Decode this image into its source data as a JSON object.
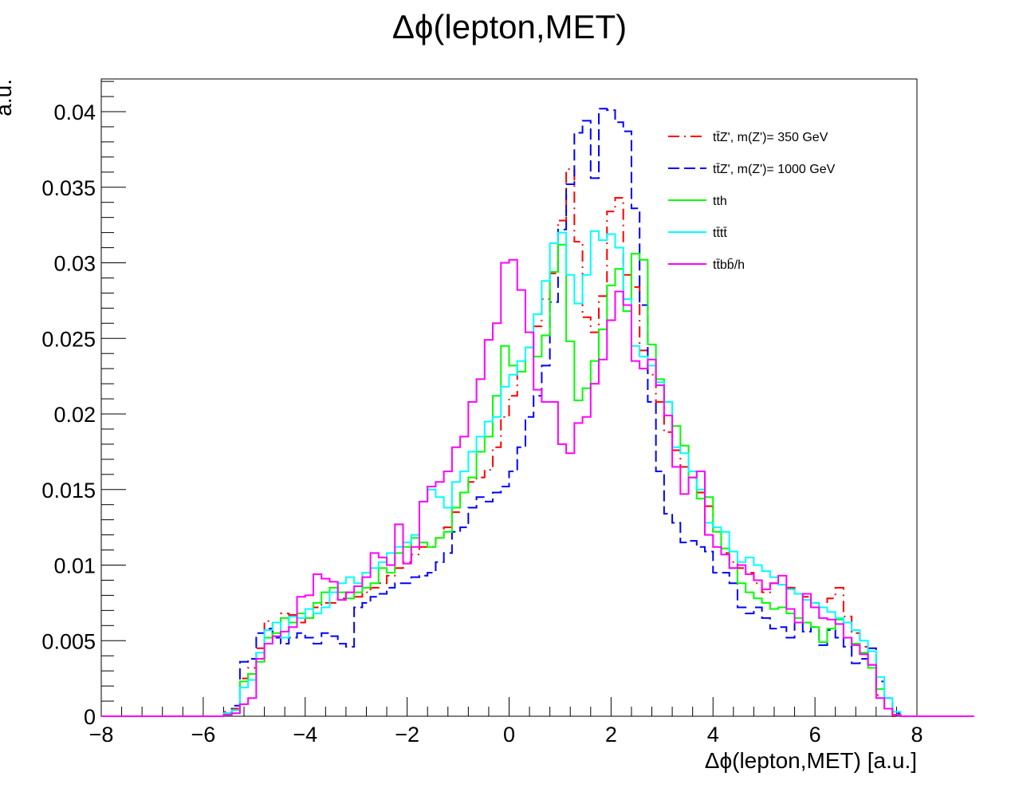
{
  "chart_data": {
    "type": "histogram",
    "title": "Δϕ(lepton,MET)",
    "xlabel": "Δϕ(lepton,MET) [a.u.]",
    "ylabel": "a.u.",
    "xlim": [
      -8,
      8
    ],
    "ylim": [
      0,
      0.042
    ],
    "xticks": [
      -8,
      -6,
      -4,
      -2,
      0,
      2,
      4,
      6,
      8
    ],
    "xtick_labels": [
      "−8",
      "−6",
      "−4",
      "−2",
      "0",
      "2",
      "4",
      "6",
      "8"
    ],
    "yticks": [
      0,
      0.005,
      0.01,
      0.015,
      0.02,
      0.025,
      0.03,
      0.035,
      0.04
    ],
    "ytick_labels": [
      "0",
      "0.005",
      "0.01",
      "0.015",
      "0.02",
      "0.025",
      "0.03",
      "0.035",
      "0.04"
    ],
    "bin_start": -8,
    "bin_width": 0.16,
    "grid": false,
    "legend_position": "top-right",
    "series": [
      {
        "name": "tt̄Z', m(Z')= 350 GeV",
        "color": "#ff0000",
        "dash": "dashdot",
        "values": [
          0,
          0,
          0,
          0,
          0,
          0,
          0,
          0,
          0,
          0,
          0,
          0,
          0,
          0,
          0,
          0.0003,
          0.0005,
          0.0025,
          0.0032,
          0.0045,
          0.0063,
          0.0055,
          0.0068,
          0.0067,
          0.0062,
          0.0065,
          0.0072,
          0.0075,
          0.0075,
          0.0078,
          0.0082,
          0.0079,
          0.0082,
          0.0085,
          0.0088,
          0.0093,
          0.0098,
          0.0102,
          0.0107,
          0.0112,
          0.0112,
          0.0118,
          0.0125,
          0.0135,
          0.0148,
          0.0155,
          0.0158,
          0.0163,
          0.0178,
          0.0198,
          0.0212,
          0.0228,
          0.0244,
          0.0258,
          0.0276,
          0.0293,
          0.0328,
          0.0362,
          0.0314,
          0.0264,
          0.0254,
          0.0278,
          0.0334,
          0.0343,
          0.0292,
          0.0284,
          0.0242,
          0.0226,
          0.0208,
          0.0188,
          0.0176,
          0.0165,
          0.0158,
          0.0148,
          0.0139,
          0.0122,
          0.0108,
          0.0102,
          0.0098,
          0.0095,
          0.0088,
          0.0082,
          0.0088,
          0.0087,
          0.0085,
          0.0081,
          0.0079,
          0.0075,
          0.0072,
          0.0078,
          0.0085,
          0.0066,
          0.0055,
          0.0046,
          0.0034,
          0.0014,
          0.0005,
          0,
          0,
          0,
          0,
          0,
          0,
          0,
          0,
          0,
          0
        ]
      },
      {
        "name": "tt̄Z', m(Z')= 1000 GeV",
        "color": "#0000ff",
        "dash": "longdash",
        "values": [
          0,
          0,
          0,
          0,
          0,
          0,
          0,
          0,
          0,
          0,
          0,
          0,
          0,
          0,
          0,
          0.0002,
          0.0007,
          0.0036,
          0.0038,
          0.0055,
          0.0058,
          0.0052,
          0.0048,
          0.0052,
          0.0055,
          0.0052,
          0.0048,
          0.0055,
          0.0053,
          0.0048,
          0.0046,
          0.0072,
          0.0075,
          0.0079,
          0.0081,
          0.0085,
          0.0088,
          0.0088,
          0.0092,
          0.0093,
          0.0095,
          0.0102,
          0.0108,
          0.0122,
          0.0125,
          0.0138,
          0.0145,
          0.0142,
          0.0148,
          0.0152,
          0.0162,
          0.0178,
          0.0198,
          0.0212,
          0.0232,
          0.0274,
          0.0322,
          0.0352,
          0.0386,
          0.0394,
          0.0356,
          0.0402,
          0.0401,
          0.0393,
          0.0387,
          0.0336,
          0.0272,
          0.0208,
          0.0162,
          0.0134,
          0.0128,
          0.0115,
          0.0116,
          0.0112,
          0.0109,
          0.0095,
          0.0095,
          0.0088,
          0.0072,
          0.0068,
          0.0072,
          0.0065,
          0.0058,
          0.0059,
          0.0052,
          0.0062,
          0.0056,
          0.0059,
          0.0047,
          0.0057,
          0.0052,
          0.0046,
          0.0035,
          0.0038,
          0.0045,
          0.0023,
          0.0012,
          0.0002,
          0,
          0,
          0,
          0,
          0,
          0,
          0,
          0,
          0
        ]
      },
      {
        "name": "tth",
        "color": "#00ff00",
        "dash": "solid",
        "values": [
          0,
          0,
          0,
          0,
          0,
          0,
          0,
          0,
          0,
          0,
          0,
          0,
          0,
          0,
          0,
          0.0001,
          0.0004,
          0.0023,
          0.0028,
          0.0036,
          0.0052,
          0.0055,
          0.0065,
          0.0062,
          0.0068,
          0.0065,
          0.0075,
          0.0082,
          0.0085,
          0.0082,
          0.0078,
          0.0082,
          0.0085,
          0.0088,
          0.0098,
          0.0095,
          0.0108,
          0.0112,
          0.0118,
          0.0115,
          0.0112,
          0.0118,
          0.0122,
          0.0138,
          0.0148,
          0.0158,
          0.0175,
          0.0185,
          0.0212,
          0.0245,
          0.0232,
          0.0228,
          0.0244,
          0.0238,
          0.0252,
          0.0294,
          0.0312,
          0.0248,
          0.0209,
          0.0217,
          0.0235,
          0.0256,
          0.0285,
          0.0296,
          0.0268,
          0.0306,
          0.0302,
          0.0246,
          0.0223,
          0.0208,
          0.0192,
          0.0179,
          0.0158,
          0.0144,
          0.0145,
          0.0122,
          0.0111,
          0.0098,
          0.0088,
          0.0082,
          0.0078,
          0.0075,
          0.0071,
          0.0072,
          0.0068,
          0.0065,
          0.0062,
          0.0059,
          0.0049,
          0.0058,
          0.0064,
          0.0052,
          0.0048,
          0.0042,
          0.0032,
          0.0018,
          0.0005,
          0.0001,
          0,
          0,
          0,
          0,
          0,
          0,
          0,
          0,
          0
        ]
      },
      {
        "name": "tt̄tt̄",
        "color": "#00ffff",
        "dash": "solid",
        "values": [
          0,
          0,
          0,
          0,
          0,
          0,
          0,
          0,
          0,
          0,
          0,
          0,
          0,
          0,
          0,
          0.0002,
          0.0004,
          0.0019,
          0.0024,
          0.0042,
          0.0057,
          0.0062,
          0.0052,
          0.0066,
          0.0065,
          0.0071,
          0.0068,
          0.0072,
          0.0082,
          0.0088,
          0.0092,
          0.0088,
          0.0095,
          0.0098,
          0.0102,
          0.0108,
          0.0112,
          0.0115,
          0.012,
          0.0142,
          0.015,
          0.0145,
          0.0138,
          0.0155,
          0.0162,
          0.0175,
          0.0185,
          0.0195,
          0.0198,
          0.0218,
          0.0226,
          0.0235,
          0.0244,
          0.0266,
          0.0288,
          0.0313,
          0.032,
          0.0292,
          0.0273,
          0.0292,
          0.0321,
          0.0315,
          0.0319,
          0.031,
          0.0276,
          0.0245,
          0.0238,
          0.0232,
          0.0221,
          0.0208,
          0.0178,
          0.0174,
          0.0162,
          0.015,
          0.0128,
          0.0125,
          0.0122,
          0.0109,
          0.0102,
          0.0105,
          0.01,
          0.0096,
          0.0092,
          0.0087,
          0.0084,
          0.0081,
          0.0077,
          0.0075,
          0.0072,
          0.0069,
          0.0065,
          0.0062,
          0.0057,
          0.005,
          0.0043,
          0.0026,
          0.0012,
          0.0003,
          0,
          0,
          0,
          0,
          0,
          0,
          0,
          0,
          0
        ]
      },
      {
        "name": "tt̄bb̄/h",
        "color": "#ff00ff",
        "dash": "solid",
        "values": [
          0,
          0,
          0,
          0,
          0,
          0,
          0,
          0,
          0,
          0,
          0,
          0,
          0,
          0,
          0,
          0.0001,
          0.0002,
          0.0008,
          0.0012,
          0.0038,
          0.0048,
          0.0053,
          0.0056,
          0.0059,
          0.0079,
          0.008,
          0.0094,
          0.0091,
          0.0089,
          0.0077,
          0.0082,
          0.0086,
          0.0092,
          0.0108,
          0.0105,
          0.01,
          0.0127,
          0.0101,
          0.0112,
          0.0142,
          0.0152,
          0.0155,
          0.0162,
          0.0178,
          0.0185,
          0.0208,
          0.0223,
          0.0249,
          0.026,
          0.03,
          0.0302,
          0.0282,
          0.0254,
          0.0216,
          0.0208,
          0.0208,
          0.018,
          0.0174,
          0.0194,
          0.0198,
          0.022,
          0.0236,
          0.0262,
          0.0281,
          0.0272,
          0.0235,
          0.023,
          0.0236,
          0.0219,
          0.0199,
          0.0165,
          0.0147,
          0.0158,
          0.0162,
          0.012,
          0.0112,
          0.0107,
          0.0098,
          0.01,
          0.0094,
          0.009,
          0.0084,
          0.0088,
          0.0093,
          0.0071,
          0.0062,
          0.0081,
          0.0072,
          0.0065,
          0.0064,
          0.0061,
          0.0052,
          0.0047,
          0.0041,
          0.0034,
          0.0012,
          0.0005,
          0.0001,
          0,
          0,
          0,
          0,
          0,
          0,
          0,
          0,
          0
        ]
      }
    ]
  }
}
